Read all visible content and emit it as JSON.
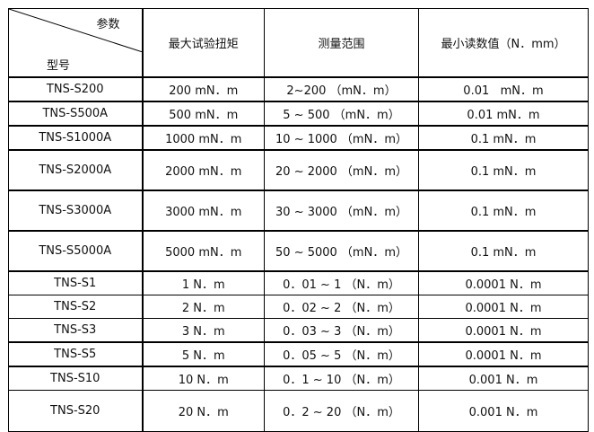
{
  "header": {
    "corner_top": "参数",
    "corner_bottom": "型号",
    "columns": [
      "最大试验扭矩",
      "测量范围",
      "最小读数值（N．mm）"
    ]
  },
  "rows": [
    [
      "TNS-S200",
      "200 mN．m",
      "2~200 （mN．m）",
      "0.01   mN．m"
    ],
    [
      "TNS-S500A",
      "500 mN．m",
      "5 ~ 500 （mN．m）",
      "0.01 mN．m"
    ],
    [
      "TNS-S1000A",
      "1000 mN．m",
      "10 ~ 1000 （mN．m）",
      "0.1 mN．m"
    ],
    [
      "TNS-S2000A",
      "2000 mN．m",
      "20 ~ 2000 （mN．m）",
      "0.1 mN．m"
    ],
    [
      "TNS-S3000A",
      "3000 mN．m",
      "30 ~ 3000 （mN．m）",
      "0.1 mN．m"
    ],
    [
      "TNS-S5000A",
      "5000 mN．m",
      "50 ~ 5000 （mN．m）",
      "0.1 mN．m"
    ],
    [
      "TNS-S1",
      "1 N．m",
      "0．01 ~ 1 （N．m）",
      "0.0001 N．m"
    ],
    [
      "TNS-S2",
      "2 N．m",
      "0．02 ~ 2 （N．m）",
      "0.0001 N．m"
    ],
    [
      "TNS-S3",
      "3 N．m",
      "0．03 ~ 3 （N．m）",
      "0.0001 N．m"
    ],
    [
      "TNS-S5",
      "5 N．m",
      "0．05 ~ 5 （N．m）",
      "0.0001 N．m"
    ],
    [
      "TNS-S10",
      "10 N．m",
      "0．1 ~ 10 （N．m）",
      "0.001 N．m"
    ],
    [
      "TNS-S20",
      "20 N．m",
      "0．2 ~ 20 （N．m）",
      "0.001 N．m"
    ]
  ],
  "spellcheck_color": "#e02020"
}
